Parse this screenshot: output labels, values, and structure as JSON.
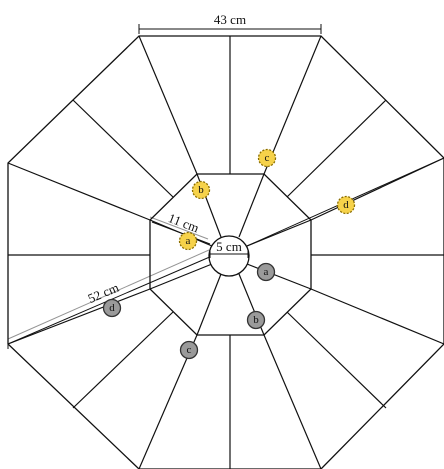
{
  "dimensions": {
    "top_width": "43 cm",
    "short_arm": "11 cm",
    "hub": "5 cm",
    "long_arm": "52 cm"
  },
  "markers": [
    {
      "id": "a",
      "state": "dashed-yellow"
    },
    {
      "id": "b",
      "state": "dashed-yellow"
    },
    {
      "id": "c",
      "state": "dashed-yellow"
    },
    {
      "id": "d",
      "state": "dashed-yellow"
    },
    {
      "id": "a",
      "state": "solid-gray"
    },
    {
      "id": "b",
      "state": "solid-gray"
    },
    {
      "id": "c",
      "state": "solid-gray"
    },
    {
      "id": "d",
      "state": "solid-gray"
    }
  ],
  "colors": {
    "marker_yellow": "#f6d24a",
    "marker_yellow_border": "#8a6d00",
    "marker_gray": "#9a9a9a",
    "marker_gray_border": "#333333",
    "lines": "#111111"
  }
}
